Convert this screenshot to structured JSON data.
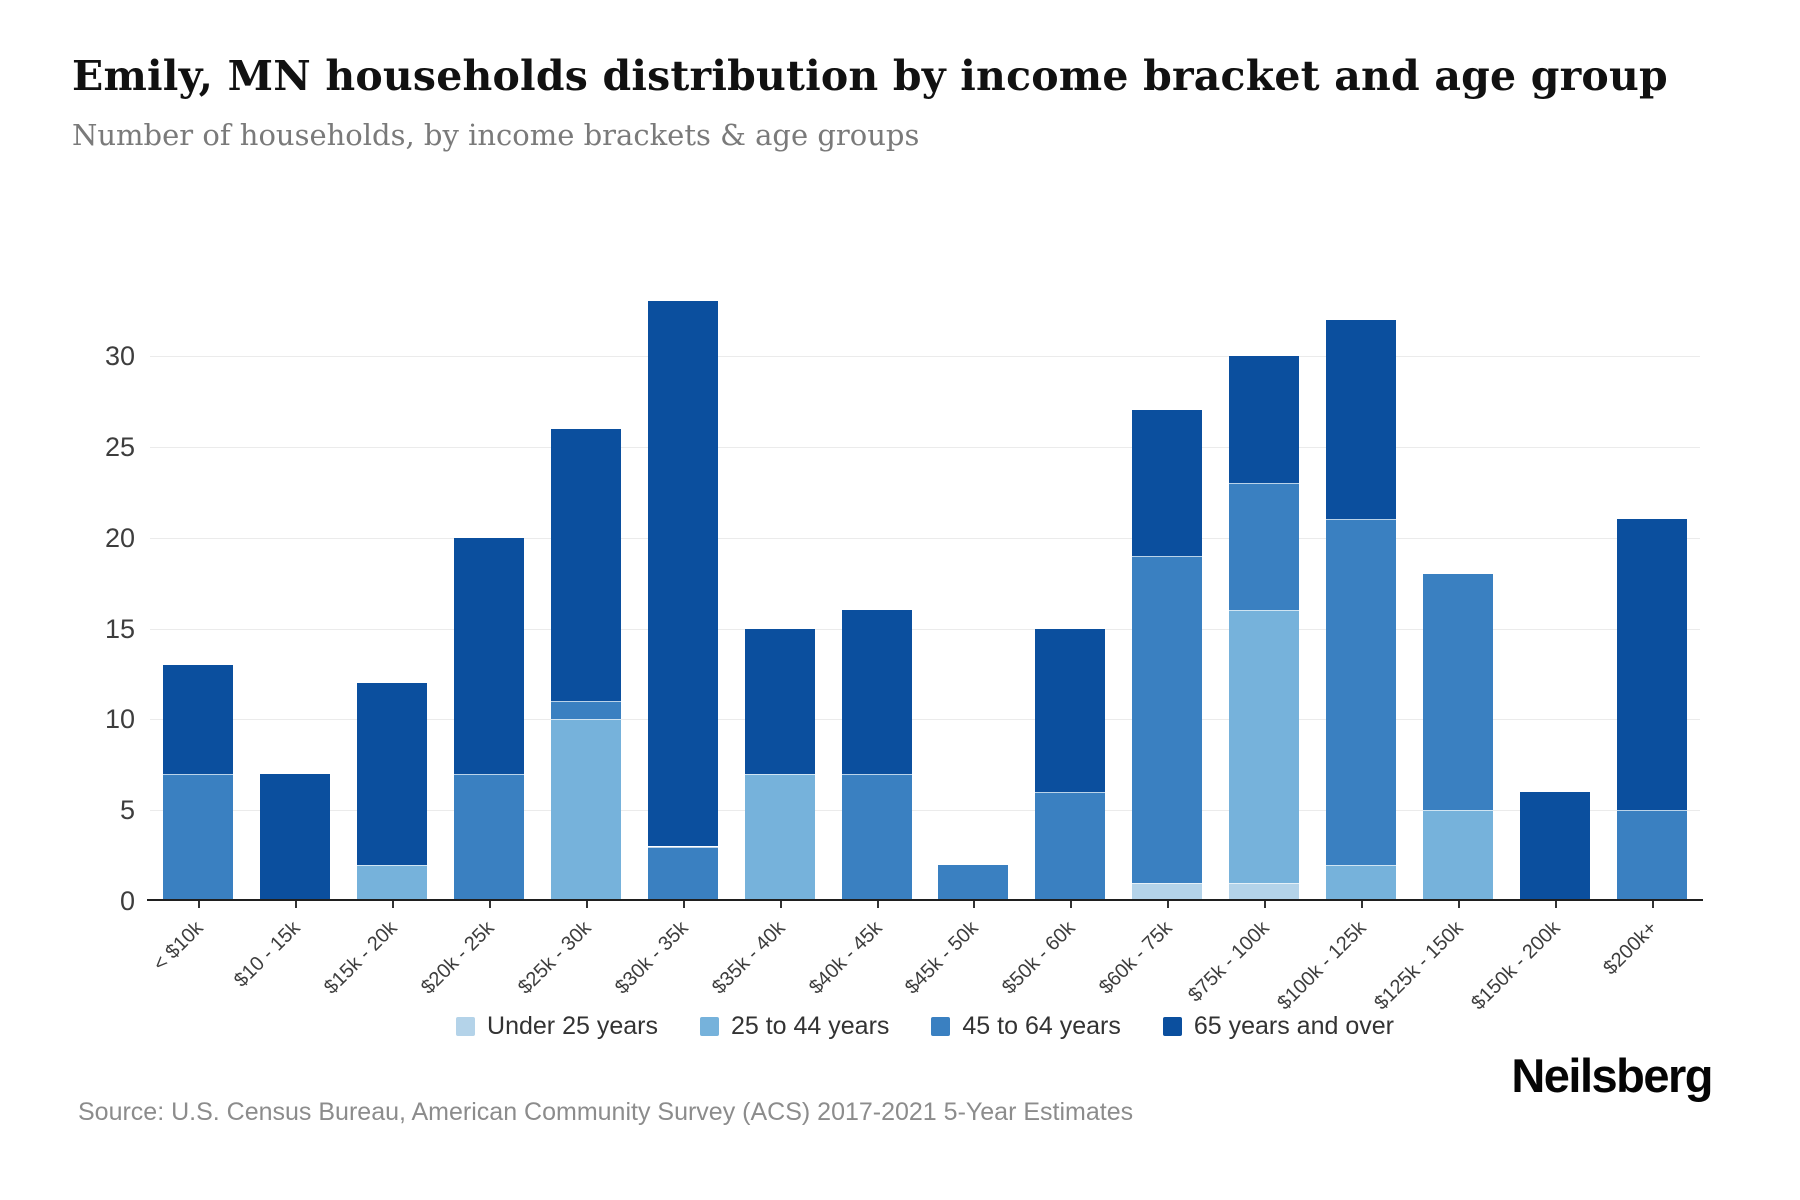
{
  "header": {
    "title": "Emily, MN households distribution by income bracket and age group",
    "subtitle": "Number of households, by income brackets & age groups"
  },
  "chart_data": {
    "type": "bar",
    "stacked": true,
    "title": "Emily, MN households distribution by income bracket and age group",
    "xlabel": "",
    "ylabel": "",
    "categories": [
      "< $10k",
      "$10 - 15k",
      "$15k - 20k",
      "$20k - 25k",
      "$25k - 30k",
      "$30k - 35k",
      "$35k - 40k",
      "$40k - 45k",
      "$45k - 50k",
      "$50k - 60k",
      "$60k - 75k",
      "$75k - 100k",
      "$100k - 125k",
      "$125k - 150k",
      "$150k - 200k",
      "$200k+"
    ],
    "series": [
      {
        "name": "Under 25 years",
        "color": "#b4d3e9",
        "values": [
          0,
          0,
          0,
          0,
          0,
          0,
          0,
          0,
          0,
          0,
          1,
          1,
          0,
          0,
          0,
          0
        ]
      },
      {
        "name": "25 to 44 years",
        "color": "#76b2db",
        "values": [
          0,
          0,
          2,
          0,
          10,
          0,
          7,
          0,
          0,
          0,
          0,
          15,
          2,
          5,
          0,
          0
        ]
      },
      {
        "name": "45 to 64 years",
        "color": "#3a80c1",
        "values": [
          7,
          0,
          0,
          7,
          1,
          3,
          0,
          7,
          2,
          6,
          18,
          7,
          19,
          13,
          0,
          5
        ]
      },
      {
        "name": "65 years and over",
        "color": "#0b4f9e",
        "values": [
          6,
          7,
          10,
          13,
          15,
          30,
          8,
          9,
          0,
          9,
          8,
          7,
          11,
          0,
          6,
          16
        ]
      }
    ],
    "totals": [
      13,
      7,
      12,
      20,
      26,
      33,
      15,
      16,
      2,
      15,
      27,
      30,
      32,
      18,
      6,
      21
    ],
    "ylim": [
      0,
      33
    ],
    "yticks": [
      0,
      5,
      10,
      15,
      20,
      25,
      30
    ],
    "grid": true,
    "legend_position": "bottom"
  },
  "footer": {
    "source": "Source: U.S. Census Bureau, American Community Survey (ACS) 2017-2021 5-Year Estimates",
    "logo": "Neilsberg"
  }
}
